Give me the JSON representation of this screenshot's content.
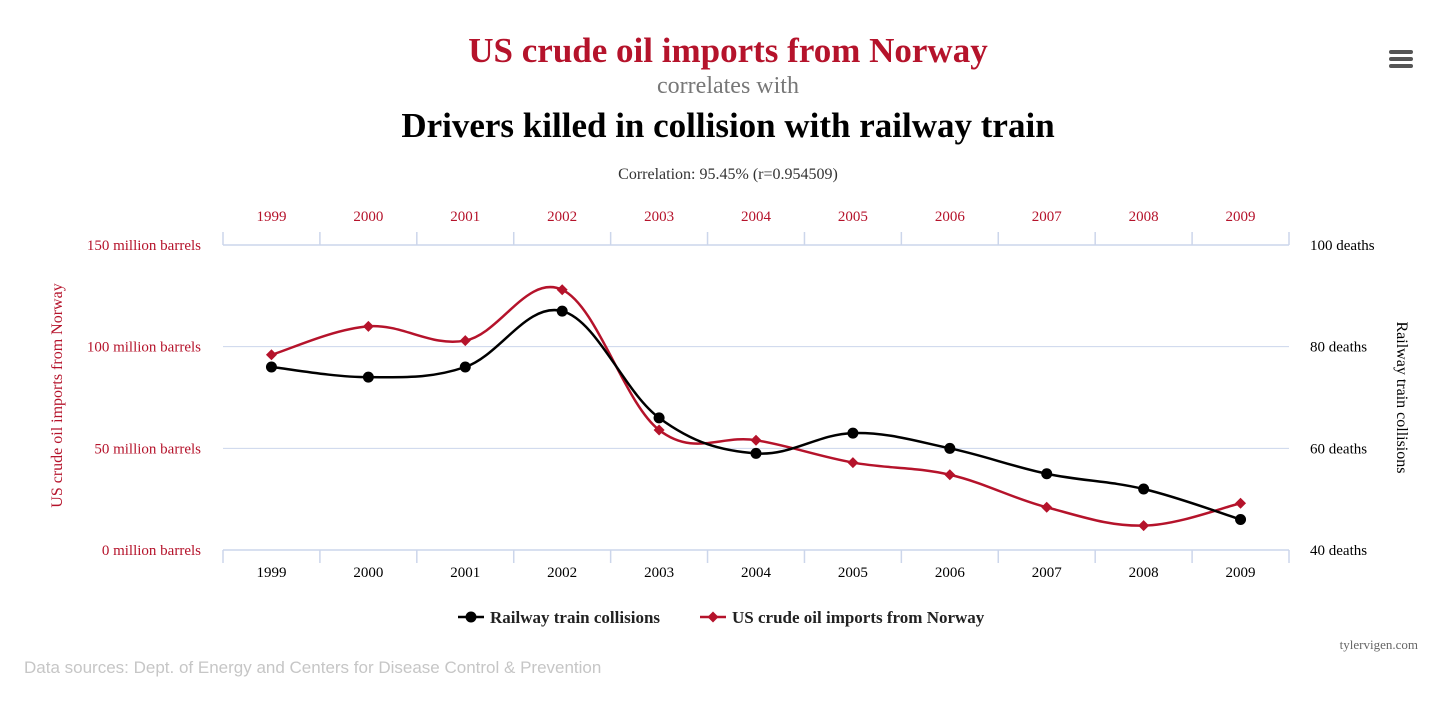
{
  "menu_icon": "hamburger-menu-icon",
  "footer": {
    "source": "Data sources: Dept. of Energy and Centers for Disease Control & Prevention",
    "credit": "tylervigen.com"
  },
  "colors": {
    "oil": "#b5132b",
    "collisions": "#000000",
    "subtitle": "#777777",
    "grid": "#ccd6eb"
  },
  "chart_data": {
    "type": "line",
    "title": "US crude oil imports from Norway",
    "connector": "correlates with",
    "title2": "Drivers killed in collision with railway train",
    "correlation_text": "Correlation: 95.45% (r=0.954509)",
    "x": [
      "1999",
      "2000",
      "2001",
      "2002",
      "2003",
      "2004",
      "2005",
      "2006",
      "2007",
      "2008",
      "2009"
    ],
    "y_left": {
      "label": "US crude oil imports from Norway",
      "ticks": [
        "0 million barrels",
        "50 million barrels",
        "100 million barrels",
        "150 million barrels"
      ],
      "tick_values": [
        0,
        50,
        100,
        150
      ],
      "ylim": [
        0,
        150
      ]
    },
    "y_right": {
      "label": "Railway train collisions",
      "ticks": [
        "40 deaths",
        "60 deaths",
        "80 deaths",
        "100 deaths"
      ],
      "tick_values": [
        40,
        60,
        80,
        100
      ],
      "ylim": [
        40,
        100
      ]
    },
    "series": [
      {
        "name": "US crude oil imports from Norway",
        "axis": "left",
        "marker": "diamond",
        "values": [
          96,
          110,
          103,
          128,
          59,
          54,
          43,
          37,
          21,
          12,
          23
        ]
      },
      {
        "name": "Railway train collisions",
        "axis": "right",
        "marker": "circle",
        "values": [
          76,
          74,
          76,
          87,
          66,
          59,
          63,
          60,
          55,
          52,
          46
        ]
      }
    ],
    "legend": {
      "placement": "bottom-center",
      "items": [
        "Railway train collisions",
        "US crude oil imports from Norway"
      ]
    },
    "grid": true
  }
}
